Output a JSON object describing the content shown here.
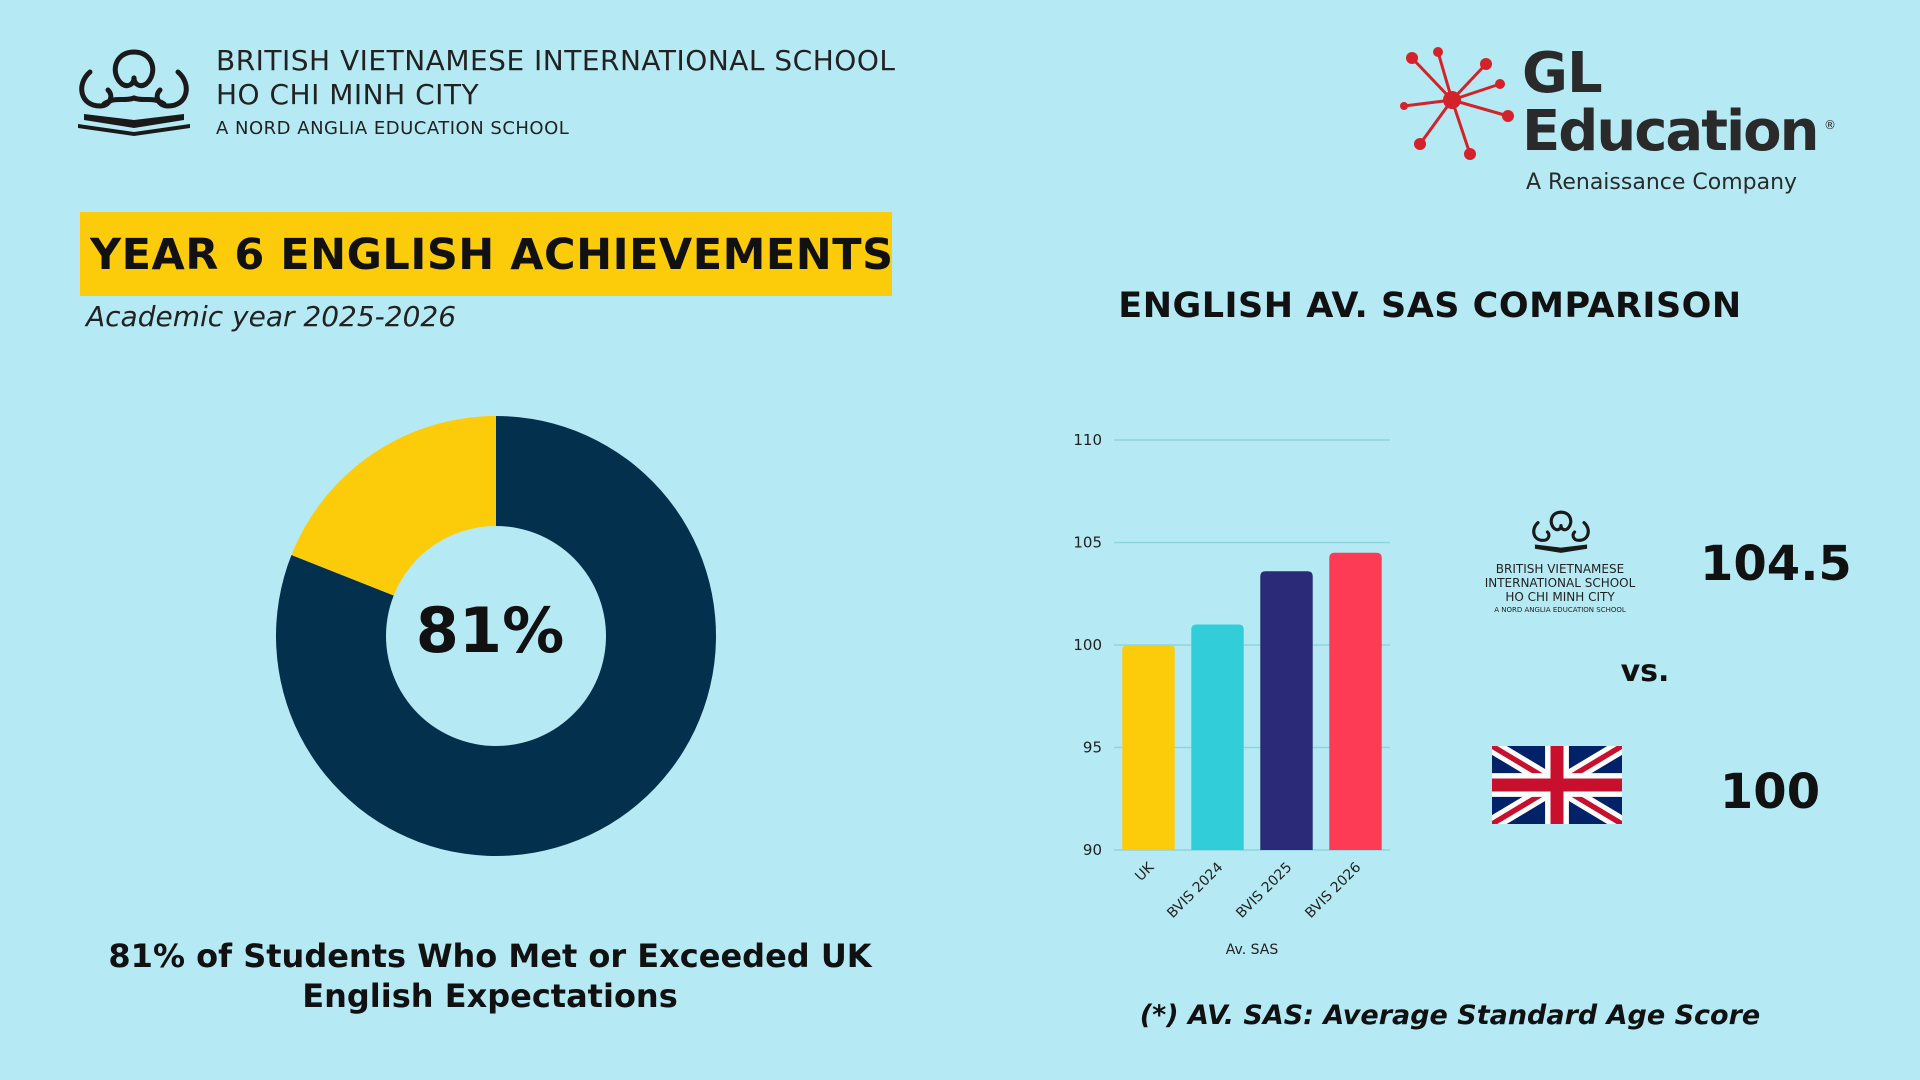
{
  "header": {
    "school_line1": "BRITISH VIETNAMESE INTERNATIONAL SCHOOL",
    "school_line2": "HO CHI MINH CITY",
    "school_line3": "A NORD ANGLIA EDUCATION SCHOOL",
    "partner_line1": "GL",
    "partner_line2": "Education",
    "partner_reg": "®",
    "partner_tagline": "A Renaissance Company"
  },
  "title": "YEAR 6 ENGLISH ACHIEVEMENTS",
  "subtitle": "Academic year 2025-2026",
  "colors": {
    "background": "#b5eaf4",
    "accent_yellow": "#fccc0a",
    "navy": "#03304c",
    "gl_red": "#d3222a"
  },
  "donut": {
    "center_label": "81%",
    "caption_line1": "81% of Students Who Met or Exceeded UK",
    "caption_line2": "English Expectations"
  },
  "comparison": {
    "school_line1": "BRITISH VIETNAMESE",
    "school_line2": "INTERNATIONAL SCHOOL",
    "school_line3": "HO CHI MINH CITY",
    "school_line4": "A NORD ANGLIA EDUCATION SCHOOL",
    "bvis_score": "104.5",
    "vs": "vs.",
    "uk_score": "100",
    "uk_icon": "uk-flag-icon"
  },
  "footnote": "(*) AV. SAS: Average Standard Age Score",
  "chart_data": [
    {
      "type": "pie",
      "labels": [
        "",
        ""
      ],
      "values": [
        81,
        19
      ],
      "colors": [
        "#03304c",
        "#fccc0a"
      ],
      "center_label": "81%"
    },
    {
      "type": "bar",
      "title": "ENGLISH AV. SAS COMPARISON",
      "categories": [
        "UK",
        "BVIS 2024",
        "BVIS 2025",
        "BVIS 2026"
      ],
      "values": [
        100,
        101,
        103.6,
        104.5
      ],
      "colors": [
        "#fccc0a",
        "#31cdd8",
        "#2a2a78",
        "#fd3b55"
      ],
      "xlabel": "Av. SAS",
      "ylabel": "",
      "ylim": [
        90,
        110
      ],
      "yticks": [
        90,
        95,
        100,
        105,
        110
      ],
      "grid": true
    }
  ]
}
